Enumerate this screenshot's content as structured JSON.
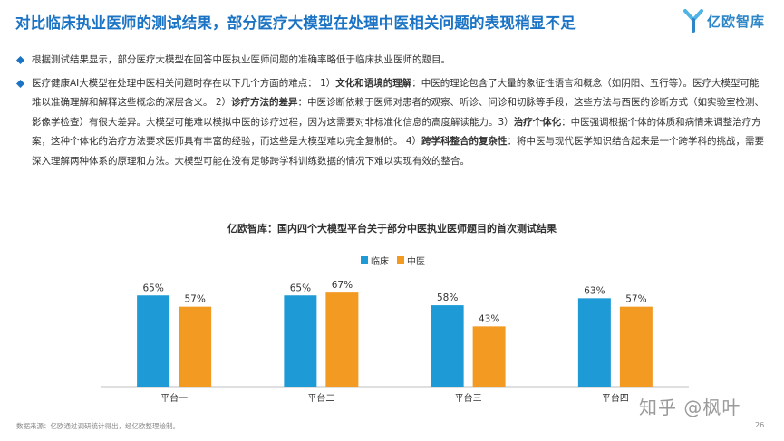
{
  "header": {
    "title": "对比临床执业医师的测试结果，部分医疗大模型在处理中医相关问题的表现稍显不足",
    "logo_text": "亿欧智库"
  },
  "bullets": {
    "first": "根据测试结果显示，部分医疗大模型在回答中医执业医师问题的准确率略低于临床执业医师的题目。",
    "second": {
      "p1": "医疗健康AI大模型在处理中医相关问题时存在以下几个方面的难点： 1）",
      "h1": "文化和语境的理解",
      "p2": "：中医的理论包含了大量的象征性语言和概念（如阴阳、五行等）。医疗大模型可能难以准确理解和解释这些概念的深层含义。 2）",
      "h2": "诊疗方法的差异",
      "p3": "：中医诊断依赖于医师对患者的观察、听诊、问诊和切脉等手段，这些方法与西医的诊断方式（如实验室检测、影像学检查）有很大差异。大模型可能难以模拟中医的诊疗过程，因为这需要对非标准化信息的高度解读能力。3）",
      "h3": "治疗个体化",
      "p4": "：中医强调根据个体的体质和病情来调整治疗方案，这种个体化的治疗方法要求医师具有丰富的经验，而这些是大模型难以完全复制的。 4）",
      "h4": "跨学科整合的复杂性",
      "p5": "：将中医与现代医学知识结合起来是一个跨学科的挑战，需要深入理解两种体系的原理和方法。大模型可能在没有足够跨学科训练数据的情况下难以实现有效的整合。"
    }
  },
  "chart_data": {
    "type": "bar",
    "title": "亿欧智库：国内四个大模型平台关于部分中医执业医师题目的首次测试结果",
    "categories": [
      "平台一",
      "平台二",
      "平台三",
      "平台四"
    ],
    "series": [
      {
        "name": "临床",
        "values": [
          65,
          65,
          58,
          63
        ],
        "labels": [
          "65%",
          "65%",
          "58%",
          "63%"
        ],
        "color": "#1e9ad6"
      },
      {
        "name": "中医",
        "values": [
          57,
          67,
          43,
          57
        ],
        "labels": [
          "57%",
          "67%",
          "43%",
          "57%"
        ],
        "color": "#f39a22"
      }
    ],
    "ylim": [
      0,
      100
    ],
    "grid": false,
    "legend": "top-center"
  },
  "footer": {
    "source": "数据来源：亿欧通过调研统计得出，经亿欧整理绘制。",
    "watermark": "知乎 @枫叶",
    "page_number": "26"
  },
  "colors": {
    "title": "#1a73c4",
    "bullet": "#1a73c4",
    "clinical": "#1e9ad6",
    "tcm": "#f39a22"
  }
}
